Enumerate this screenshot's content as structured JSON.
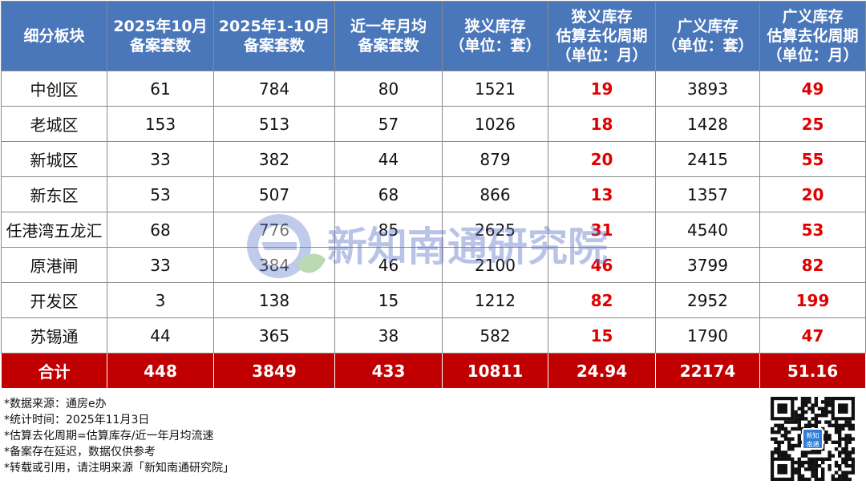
{
  "table": {
    "headers": [
      [
        "细分板块"
      ],
      [
        "2025年10月",
        "备案套数"
      ],
      [
        "2025年1-10月",
        "备案套数"
      ],
      [
        "近一年月均",
        "备案套数"
      ],
      [
        "狭义库存",
        "（单位：套）"
      ],
      [
        "狭义库存",
        "估算去化周期",
        "（单位：月）"
      ],
      [
        "广义库存",
        "（单位：套）"
      ],
      [
        "广义库存",
        "估算去化周期",
        "（单位：月）"
      ]
    ],
    "rows": [
      [
        "中创区",
        "61",
        "784",
        "80",
        "1521",
        "19",
        "3893",
        "49"
      ],
      [
        "老城区",
        "153",
        "513",
        "57",
        "1026",
        "18",
        "1428",
        "25"
      ],
      [
        "新城区",
        "33",
        "382",
        "44",
        "879",
        "20",
        "2415",
        "55"
      ],
      [
        "新东区",
        "53",
        "507",
        "68",
        "866",
        "13",
        "1357",
        "20"
      ],
      [
        "任港湾五龙汇",
        "68",
        "776",
        "85",
        "2625",
        "31",
        "4540",
        "53"
      ],
      [
        "原港闸",
        "33",
        "384",
        "46",
        "2100",
        "46",
        "3799",
        "82"
      ],
      [
        "开发区",
        "3",
        "138",
        "15",
        "1212",
        "82",
        "2952",
        "199"
      ],
      [
        "苏锡通",
        "44",
        "365",
        "38",
        "582",
        "15",
        "1790",
        "47"
      ]
    ],
    "total": [
      "合计",
      "448",
      "3849",
      "433",
      "10811",
      "24.94",
      "22174",
      "51.16"
    ]
  },
  "notes": [
    "*数据来源：通房e办",
    "*统计时间：2025年11月3日",
    "*估算去化周期=估算库存/近一年月均流速",
    "*备案存在延迟，数据仅供参考",
    "*转载或引用，请注明来源「新知南通研究院」"
  ],
  "watermark": {
    "text": "新知南通研究院"
  },
  "qr": {
    "logo_text": "新知南通"
  },
  "colors": {
    "header": "#4a77ba",
    "total_row": "#c00000",
    "highlight": "#e00000"
  }
}
